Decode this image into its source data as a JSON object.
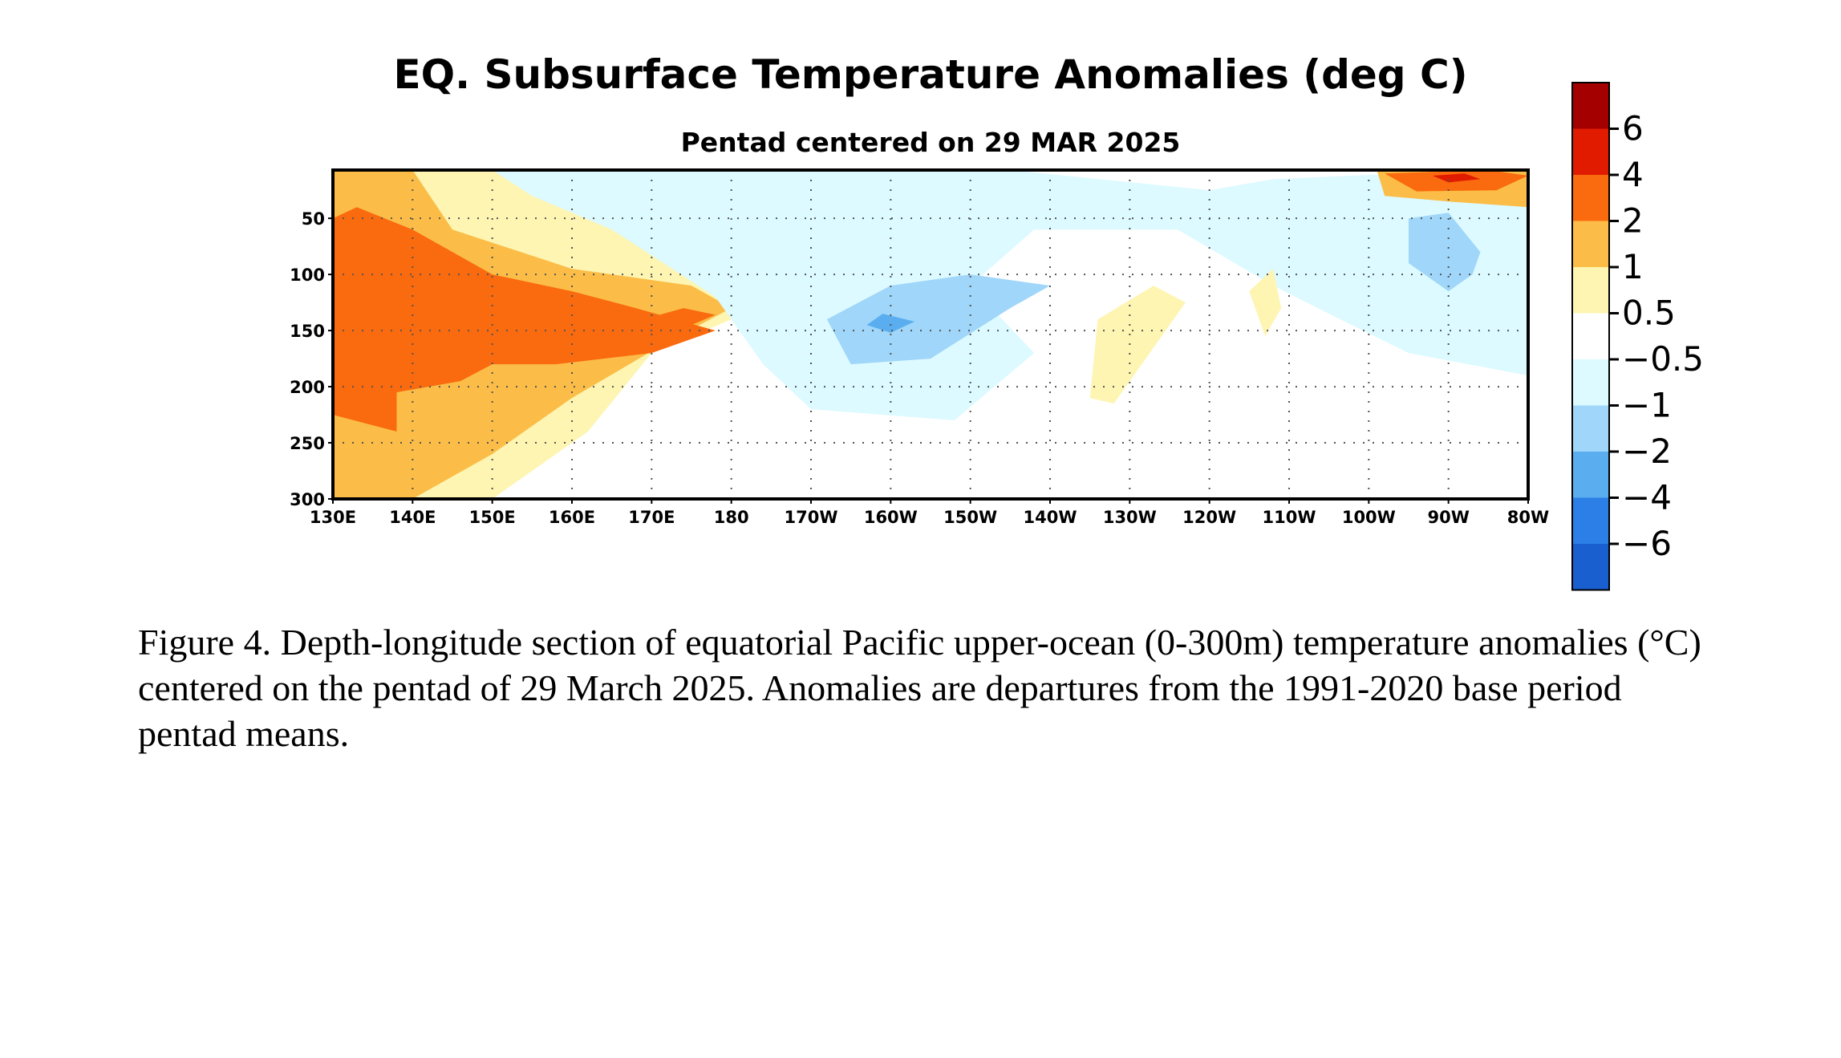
{
  "chart_data": {
    "type": "heatmap",
    "title": "EQ. Subsurface Temperature Anomalies (deg C)",
    "subtitle": "Pentad centered on 29 MAR 2025",
    "xlabel": "",
    "ylabel": "",
    "x_ticks": [
      "130E",
      "140E",
      "150E",
      "160E",
      "170E",
      "180",
      "170W",
      "160W",
      "150W",
      "140W",
      "130W",
      "120W",
      "110W",
      "100W",
      "90W",
      "80W"
    ],
    "y_ticks": [
      "50",
      "100",
      "150",
      "200",
      "250",
      "300"
    ],
    "y_tick_values": [
      50,
      100,
      150,
      200,
      250,
      300
    ],
    "ylim": [
      300,
      7
    ],
    "xlim": [
      130,
      280
    ],
    "grid": true,
    "colorbar": {
      "placement": "right",
      "labels": [
        "6",
        "4",
        "2",
        "1",
        "0.5",
        "−0.5",
        "−1",
        "−2",
        "−4",
        "−6"
      ],
      "colors": [
        "#a40000",
        "#e01b00",
        "#fa6a0f",
        "#fbbd47",
        "#fdf5b1",
        "#ffffff",
        "#dcfaff",
        "#9fd6f9",
        "#5aaef0",
        "#2b7fe6",
        "#1a5fd0"
      ]
    },
    "regions": [
      {
        "name": "west Pacific warm anomaly (>1 to >2 deg C)",
        "lon_range": [
          130,
          182
        ],
        "depth_range": [
          10,
          300
        ],
        "max_anomaly": 2
      },
      {
        "name": "central Pacific cool anomaly (<-1 to <-2 deg C)",
        "lon_range": [
          190,
          215
        ],
        "depth_range": [
          90,
          220
        ],
        "min_anomaly": -4
      },
      {
        "name": "far east near-surface warm anomaly (>2 to >4 deg C)",
        "lon_range": [
          261,
          280
        ],
        "depth_range": [
          7,
          35
        ],
        "max_anomaly": 6
      },
      {
        "name": "eastern Pacific cool anomaly (<-1 deg C)",
        "lon_range": [
          262,
          272
        ],
        "depth_range": [
          40,
          120
        ],
        "min_anomaly": -2
      }
    ]
  },
  "caption": "Figure 4. Depth-longitude section of equatorial Pacific upper-ocean (0-300m) temperature anomalies (°C) centered on the pentad of 29 March 2025. Anomalies are departures from the 1991-2020 base period pentad means."
}
